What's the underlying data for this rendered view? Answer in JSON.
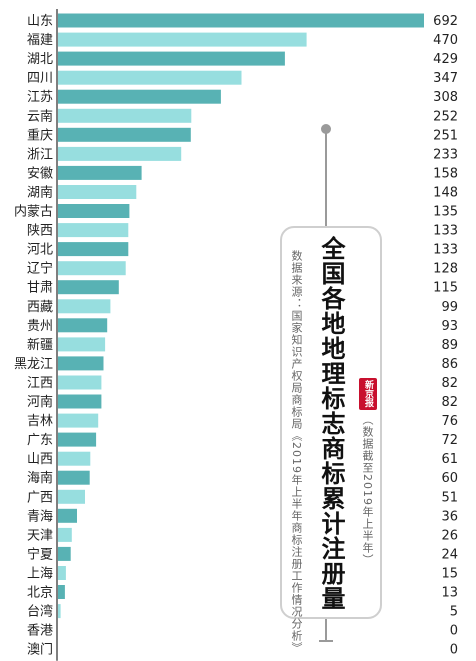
{
  "chart_data": {
    "type": "bar",
    "orientation": "horizontal",
    "title": "全国各地地理标志商标累计注册量",
    "source": "数据来源：国家知识产权局商标局《2019年上半年商标注册工作情况分析》",
    "note": "（数据截至2019年上半年）",
    "categories": [
      "山东",
      "福建",
      "湖北",
      "四川",
      "江苏",
      "云南",
      "重庆",
      "浙江",
      "安徽",
      "湖南",
      "内蒙古",
      "陕西",
      "河北",
      "辽宁",
      "甘肃",
      "西藏",
      "贵州",
      "新疆",
      "黑龙江",
      "江西",
      "河南",
      "吉林",
      "广东",
      "山西",
      "海南",
      "广西",
      "青海",
      "天津",
      "宁夏",
      "上海",
      "北京",
      "台湾",
      "香港",
      "澳门"
    ],
    "values": [
      692,
      470,
      429,
      347,
      308,
      252,
      251,
      233,
      158,
      148,
      135,
      133,
      133,
      128,
      115,
      99,
      93,
      89,
      86,
      82,
      82,
      76,
      72,
      61,
      60,
      51,
      36,
      26,
      24,
      15,
      13,
      5,
      0,
      0
    ],
    "xlim": [
      0,
      692
    ],
    "grid": false,
    "legend": "none",
    "colors": {
      "dark": "#58b2b4",
      "light": "#97dedf",
      "axis": "#555555"
    }
  },
  "card": {
    "title": "全国各地地理标志商标累计注册量",
    "source": "数据来源：国家知识产权局商标局《2019年上半年商标注册工作情况分析》",
    "note": "（数据截至2019年上半年）",
    "brand": "新京报"
  }
}
